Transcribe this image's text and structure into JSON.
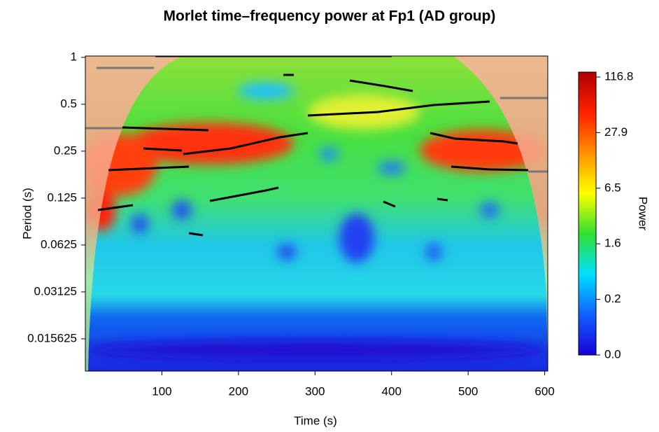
{
  "chart_data": {
    "type": "wavelet-power",
    "title": "Morlet time–frequency power at Fp1 (AD group)",
    "xlabel": "Time (s)",
    "ylabel": "Period (s)",
    "colorbar_label": "Power",
    "xlim": [
      0,
      604
    ],
    "xticks": [
      100,
      200,
      300,
      400,
      500,
      600
    ],
    "ylim": [
      0.0097,
      1.02
    ],
    "ylog": true,
    "yticks": [
      1,
      0.5,
      0.25,
      0.125,
      0.0625,
      0.03125,
      0.015625
    ],
    "colorbar_ticks": [
      {
        "value": 0,
        "label": "0.0"
      },
      0.2,
      1.6,
      6.5,
      27.9,
      116.8
    ],
    "colors": [
      "#1a00d8",
      "#1060ff",
      "#00e0ff",
      "#30e030",
      "#ffff00",
      "#ff9000",
      "#ff2000",
      "#b00000"
    ]
  }
}
